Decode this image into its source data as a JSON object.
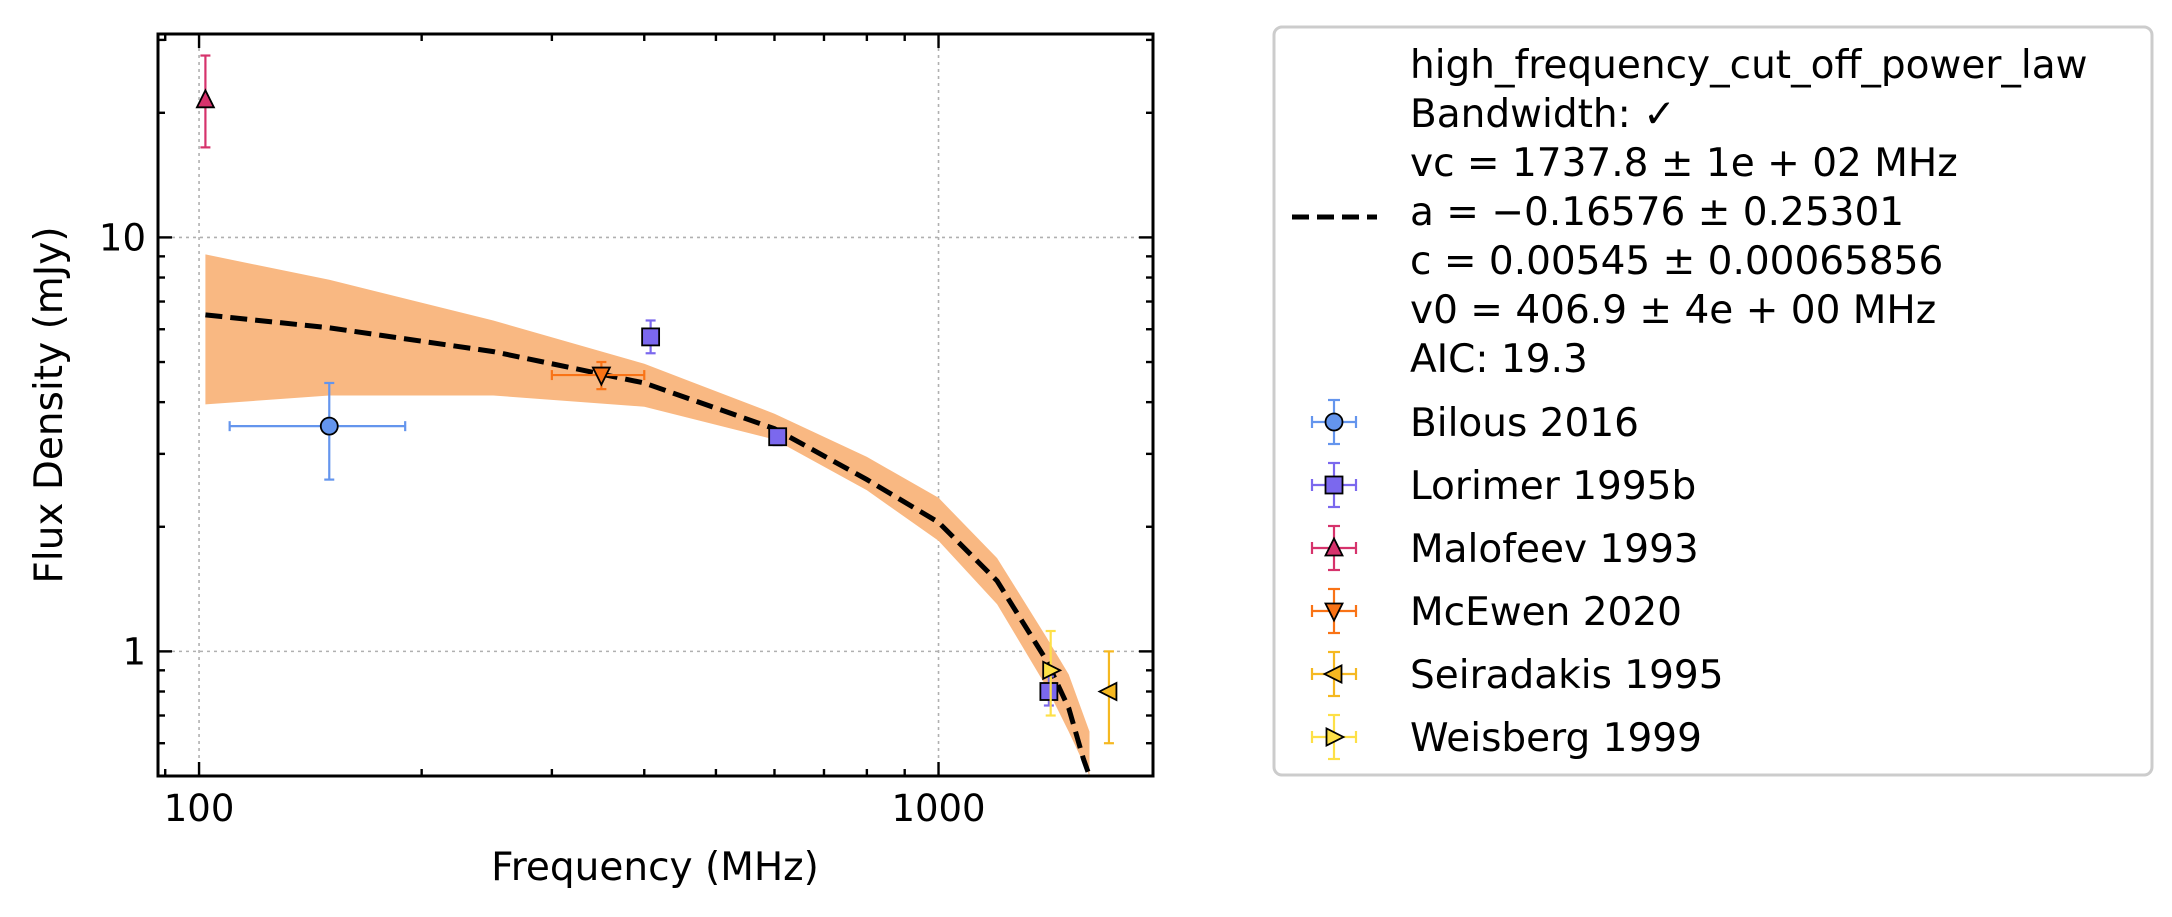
{
  "chart_data": {
    "type": "scatter",
    "xlabel": "Frequency (MHz)",
    "ylabel": "Flux Density (mJy)",
    "xscale": "log",
    "yscale": "log",
    "xlim": [
      88,
      1950
    ],
    "ylim": [
      0.5,
      31
    ],
    "x_ticks": [
      {
        "value": 100,
        "label": "100"
      },
      {
        "value": 1000,
        "label": "1000"
      }
    ],
    "y_ticks": [
      {
        "value": 1,
        "label": "1"
      },
      {
        "value": 10,
        "label": "10"
      }
    ],
    "grid": true,
    "legend_placement": "outside right",
    "fit": {
      "model": "high_frequency_cut_off_power_law",
      "vc": 1737.8,
      "a": -0.16576,
      "c": 0.00545,
      "v0": 406.9,
      "band_color": "#f9b882",
      "line_color": "#000000",
      "band": [
        {
          "x": 102,
          "lo": 3.95,
          "hi": 9.1
        },
        {
          "x": 150,
          "lo": 4.15,
          "hi": 7.9
        },
        {
          "x": 250,
          "lo": 4.15,
          "hi": 6.3
        },
        {
          "x": 400,
          "lo": 3.9,
          "hi": 4.95
        },
        {
          "x": 600,
          "lo": 3.25,
          "hi": 3.75
        },
        {
          "x": 800,
          "lo": 2.45,
          "hi": 2.95
        },
        {
          "x": 1000,
          "lo": 1.85,
          "hi": 2.35
        },
        {
          "x": 1200,
          "lo": 1.3,
          "hi": 1.68
        },
        {
          "x": 1400,
          "lo": 0.82,
          "hi": 1.08
        },
        {
          "x": 1500,
          "lo": 0.64,
          "hi": 0.88
        },
        {
          "x": 1600,
          "lo": 0.5,
          "hi": 0.64
        }
      ],
      "line": [
        {
          "x": 102,
          "y": 6.5
        },
        {
          "x": 150,
          "y": 6.05
        },
        {
          "x": 250,
          "y": 5.3
        },
        {
          "x": 400,
          "y": 4.45
        },
        {
          "x": 600,
          "y": 3.45
        },
        {
          "x": 800,
          "y": 2.6
        },
        {
          "x": 1000,
          "y": 2.05
        },
        {
          "x": 1200,
          "y": 1.48
        },
        {
          "x": 1400,
          "y": 0.95
        },
        {
          "x": 1500,
          "y": 0.73
        },
        {
          "x": 1570,
          "y": 0.55
        },
        {
          "x": 1600,
          "y": 0.5
        }
      ]
    },
    "series": [
      {
        "name": "Bilous 2016",
        "marker": "circle",
        "color": "#6495ed",
        "points": [
          {
            "x": 150,
            "xerr": [
              110,
              190
            ],
            "y": 3.5,
            "yerr": [
              2.6,
              4.45
            ]
          }
        ]
      },
      {
        "name": "Lorimer 1995b",
        "marker": "square",
        "color": "#7b68ee",
        "points": [
          {
            "x": 408,
            "y": 5.75,
            "yerr": [
              5.25,
              6.3
            ]
          },
          {
            "x": 606,
            "y": 3.3,
            "yerr": [
              3.15,
              3.45
            ]
          },
          {
            "x": 1410,
            "y": 0.8,
            "yerr": [
              0.74,
              0.87
            ]
          }
        ]
      },
      {
        "name": "Malofeev 1993",
        "marker": "triangle-up",
        "color": "#d6336c",
        "points": [
          {
            "x": 102,
            "y": 21.5,
            "yerr": [
              16.5,
              27.5
            ]
          }
        ]
      },
      {
        "name": "McEwen 2020",
        "marker": "triangle-down",
        "color": "#f97316",
        "points": [
          {
            "x": 350,
            "xerr": [
              300,
              400
            ],
            "y": 4.65,
            "yerr": [
              4.3,
              5.0
            ]
          }
        ]
      },
      {
        "name": "Seiradakis 1995",
        "marker": "triangle-left",
        "color": "#f5b821",
        "points": [
          {
            "x": 1700,
            "y": 0.8,
            "yerr": [
              0.6,
              1.0
            ]
          }
        ]
      },
      {
        "name": "Weisberg 1999",
        "marker": "triangle-right",
        "color": "#fde047",
        "points": [
          {
            "x": 1418,
            "y": 0.9,
            "yerr": [
              0.7,
              1.12
            ]
          }
        ]
      }
    ],
    "legend": {
      "fit_lines": [
        "high_frequency_cut_off_power_law",
        "Bandwidth: ✓",
        "vc = 1737.8 ± 1e + 02 MHz",
        "a = −0.16576 ± 0.25301",
        "c = 0.00545 ± 0.00065856",
        "v0 = 406.9 ± 4e + 00 MHz",
        "AIC: 19.3"
      ],
      "entries": [
        "Bilous 2016",
        "Lorimer 1995b",
        "Malofeev 1993",
        "McEwen 2020",
        "Seiradakis 1995",
        "Weisberg 1999"
      ]
    }
  }
}
